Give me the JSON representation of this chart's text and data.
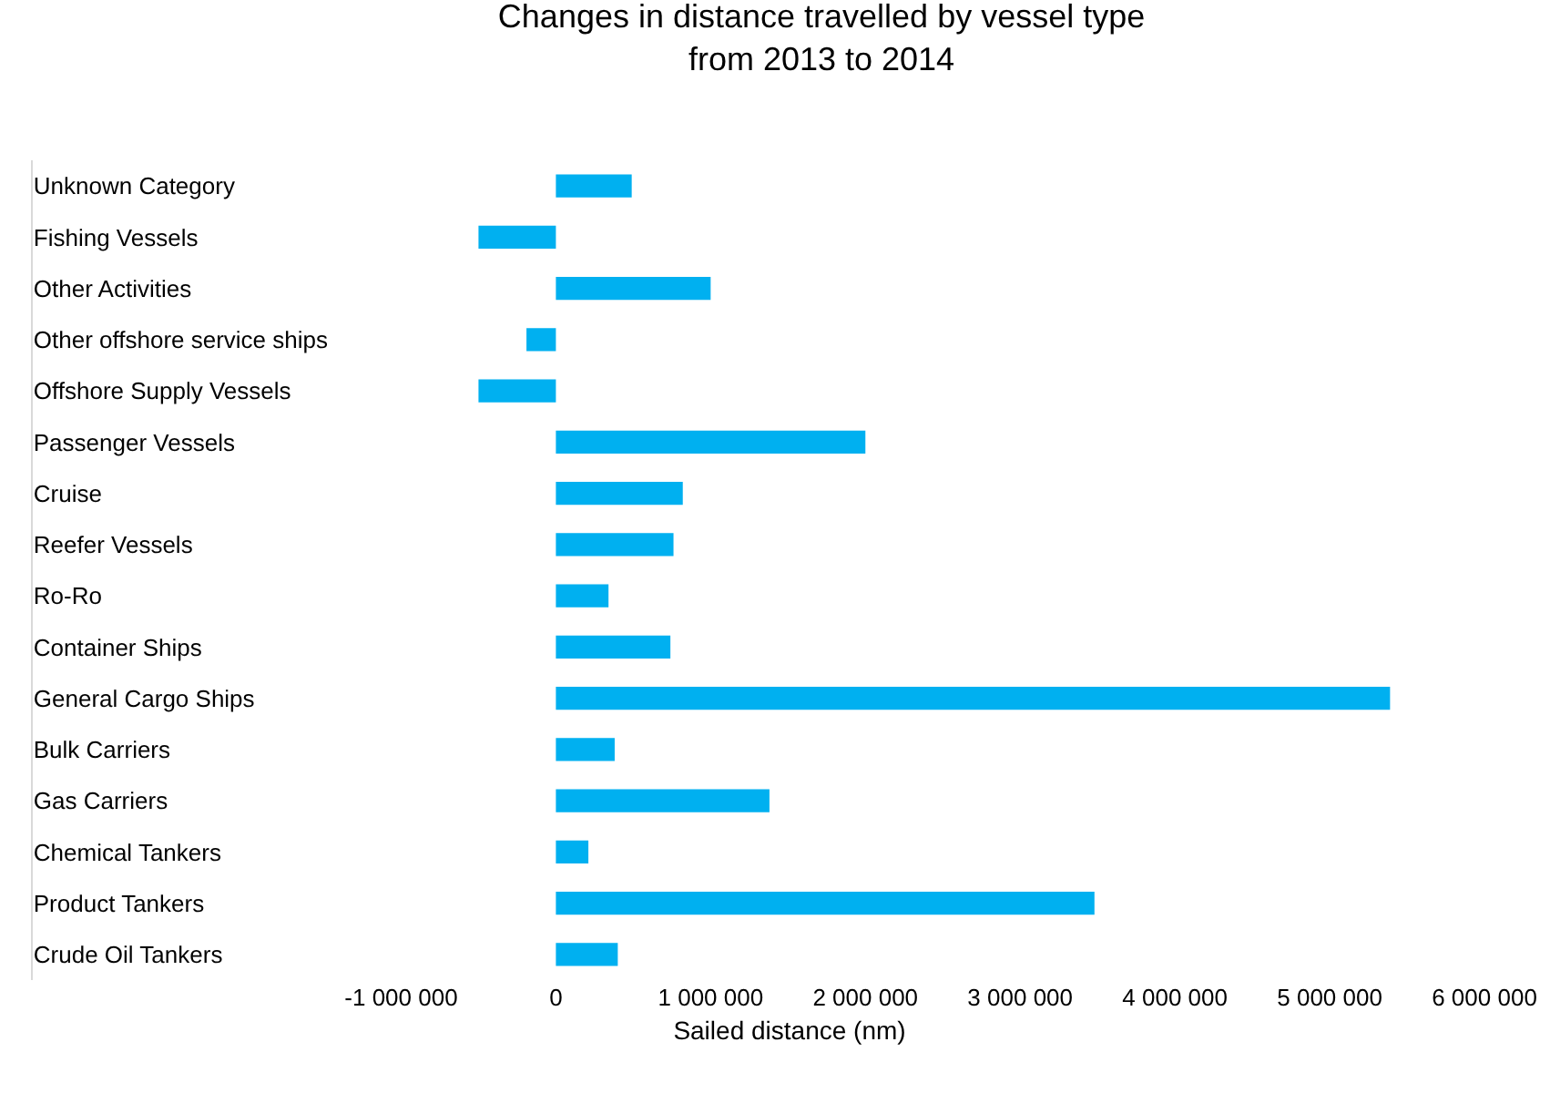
{
  "chart_data": {
    "type": "bar",
    "orientation": "horizontal",
    "title": "Changes in distance travelled by vessel type\nfrom 2013 to 2014",
    "xlabel": "Sailed distance (nm)",
    "categories": [
      "Unknown Category",
      "Fishing Vessels",
      "Other Activities",
      "Other offshore service ships",
      "Offshore Supply Vessels",
      "Passenger Vessels",
      "Cruise",
      "Reefer Vessels",
      "Ro-Ro",
      "Container Ships",
      "General Cargo Ships",
      "Bulk Carriers",
      "Gas Carriers",
      "Chemical Tankers",
      "Product Tankers",
      "Crude Oil Tankers"
    ],
    "values": [
      490000,
      -500000,
      1000000,
      -190000,
      -500000,
      2000000,
      820000,
      760000,
      340000,
      740000,
      5390000,
      380000,
      1380000,
      210000,
      3480000,
      400000
    ],
    "color": "#00b0f0",
    "xlim": [
      -3380000,
      6400000
    ],
    "xticks": [
      {
        "value": -1000000,
        "label": "-1 000 000"
      },
      0,
      {
        "value": 1000000,
        "label": "1 000 000"
      },
      {
        "value": 2000000,
        "label": "2 000 000"
      },
      {
        "value": 3000000,
        "label": "3 000 000"
      },
      {
        "value": 4000000,
        "label": "4 000 000"
      },
      {
        "value": 5000000,
        "label": "5 000 000"
      },
      {
        "value": 6000000,
        "label": "6 000 000"
      }
    ],
    "grid": false,
    "legend": false
  }
}
